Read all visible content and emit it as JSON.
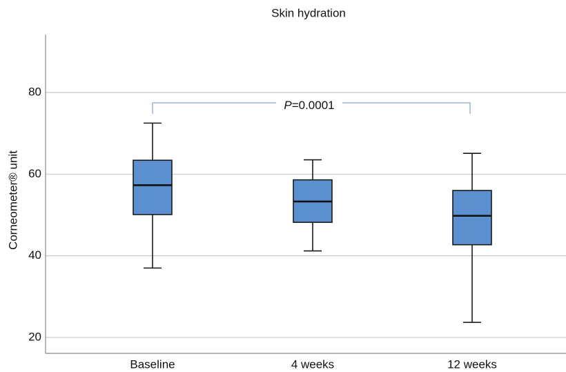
{
  "chart_data": {
    "type": "box",
    "title": "Skin hydration",
    "ylabel": "Corneometer® unit",
    "categories": [
      "Baseline",
      "4 weeks",
      "12 weeks"
    ],
    "boxes": [
      {
        "min": 37.0,
        "q1": 50.1,
        "median": 57.3,
        "q3": 63.4,
        "max": 72.5
      },
      {
        "min": 41.2,
        "q1": 48.2,
        "median": 53.3,
        "q3": 58.6,
        "max": 63.5
      },
      {
        "min": 23.7,
        "q1": 42.7,
        "median": 49.8,
        "q3": 56.0,
        "max": 65.1
      }
    ],
    "color": "#5b8fd0",
    "annotation": [
      "P",
      "=0.0001"
    ],
    "ylim": [
      16.1,
      94.2
    ],
    "yticks": [
      20,
      40,
      60,
      80
    ],
    "grid": true
  }
}
